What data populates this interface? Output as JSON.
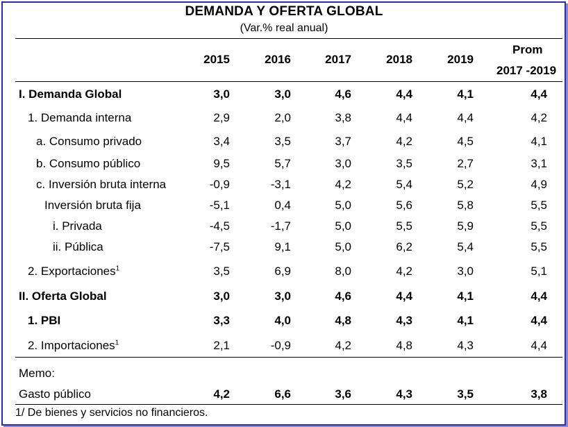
{
  "title": "DEMANDA Y OFERTA GLOBAL",
  "subtitle": "(Var.% real anual)",
  "columns": [
    "2015",
    "2016",
    "2017",
    "2018",
    "2019"
  ],
  "prom_header": [
    "Prom",
    "2017 -2019"
  ],
  "rows": [
    {
      "label": "I. Demanda Global",
      "values": [
        "3,0",
        "3,0",
        "4,6",
        "4,4",
        "4,1",
        "4,4"
      ]
    },
    {
      "label": "1. Demanda interna",
      "values": [
        "2,9",
        "2,0",
        "3,8",
        "4,4",
        "4,4",
        "4,2"
      ]
    },
    {
      "label": "a. Consumo privado",
      "values": [
        "3,4",
        "3,5",
        "3,7",
        "4,2",
        "4,5",
        "4,1"
      ]
    },
    {
      "label": "b. Consumo público",
      "values": [
        "9,5",
        "5,7",
        "3,0",
        "3,5",
        "2,7",
        "3,1"
      ]
    },
    {
      "label": "c. Inversión bruta interna",
      "values": [
        "-0,9",
        "-3,1",
        "4,2",
        "5,4",
        "5,2",
        "4,9"
      ]
    },
    {
      "label": "Inversión bruta fija",
      "values": [
        "-5,1",
        "0,4",
        "5,0",
        "5,6",
        "5,8",
        "5,5"
      ]
    },
    {
      "label": "i.  Privada",
      "values": [
        "-4,5",
        "-1,7",
        "5,0",
        "5,5",
        "5,9",
        "5,5"
      ]
    },
    {
      "label": "ii. Pública",
      "values": [
        "-7,5",
        "9,1",
        "5,0",
        "6,2",
        "5,4",
        "5,5"
      ]
    },
    {
      "label": "2. Exportaciones",
      "sup": "1",
      "values": [
        "3,5",
        "6,9",
        "8,0",
        "4,2",
        "3,0",
        "5,1"
      ]
    },
    {
      "label": "II. Oferta Global",
      "values": [
        "3,0",
        "3,0",
        "4,6",
        "4,4",
        "4,1",
        "4,4"
      ]
    },
    {
      "label": "1. PBI",
      "values": [
        "3,3",
        "4,0",
        "4,8",
        "4,3",
        "4,1",
        "4,4"
      ]
    },
    {
      "label": "2. Importaciones",
      "sup": "1",
      "values": [
        "2,1",
        "-0,9",
        "4,2",
        "4,8",
        "4,3",
        "4,4"
      ]
    }
  ],
  "memo_label": "Memo:",
  "memo_row": {
    "label": "Gasto público",
    "values": [
      "4,2",
      "6,6",
      "3,6",
      "4,3",
      "3,5",
      "3,8"
    ]
  },
  "footnote": "1/ De bienes y servicios no financieros.",
  "colors": {
    "frame": "#2b2bb8"
  }
}
